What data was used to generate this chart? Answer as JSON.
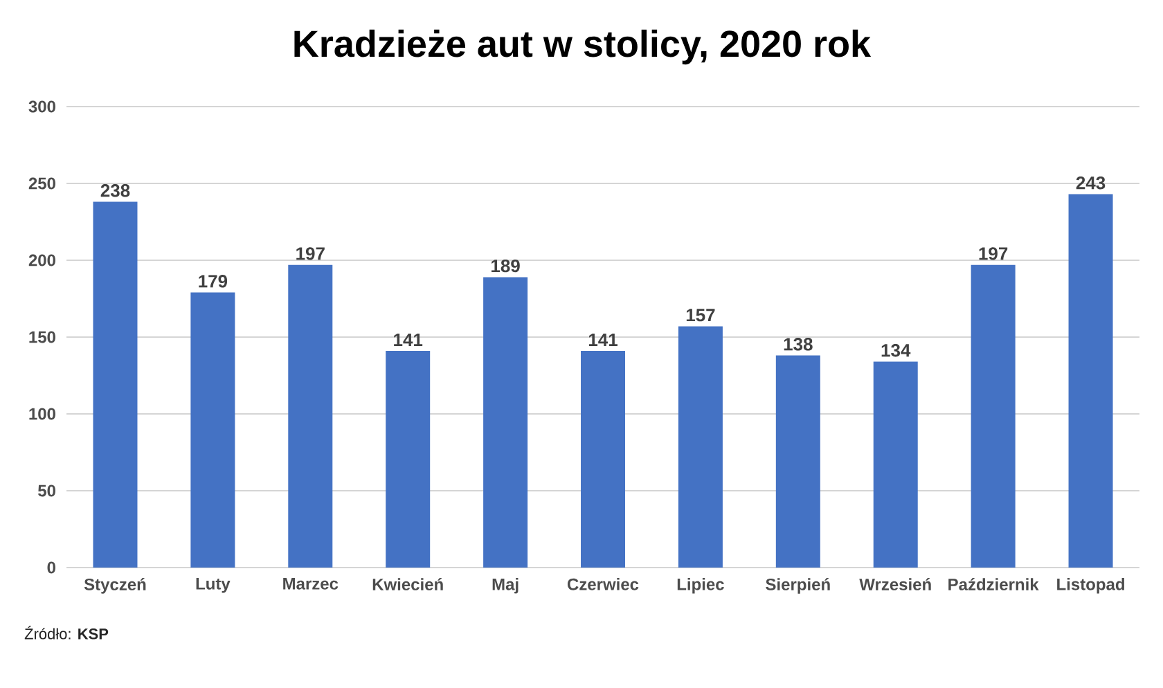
{
  "chart_data": {
    "type": "bar",
    "title": "Kradzieże aut w stolicy, 2020 rok",
    "categories": [
      "Styczeń",
      "Luty",
      "Marzec",
      "Kwiecień",
      "Maj",
      "Czerwiec",
      "Lipiec",
      "Sierpień",
      "Wrzesień",
      "Październik",
      "Listopad"
    ],
    "values": [
      238,
      179,
      197,
      141,
      189,
      141,
      157,
      138,
      134,
      197,
      243
    ],
    "color": "#4472c4",
    "ylim": [
      0,
      300
    ],
    "yticks": [
      0,
      50,
      100,
      150,
      200,
      250,
      300
    ],
    "grid": "y",
    "data_labels": true,
    "annotations": [
      "Źródło: **KSP**"
    ]
  }
}
